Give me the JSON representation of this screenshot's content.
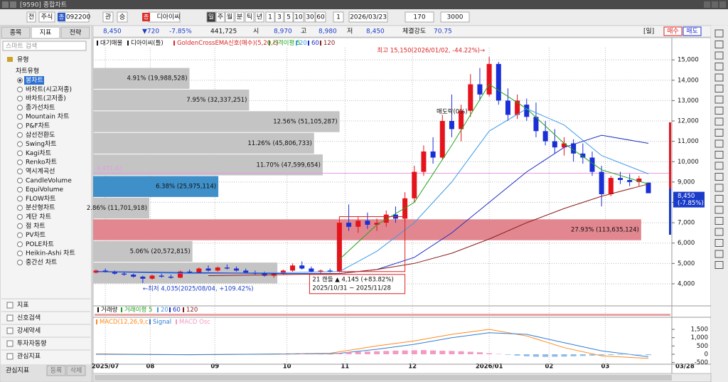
{
  "window": {
    "title": "[9590] 종합차트"
  },
  "toolbar": {
    "buttons": [
      "전",
      "주식",
      "092200",
      "관",
      "승",
      "디아이씨",
      "일",
      "주",
      "월",
      "분",
      "틱",
      "년",
      "1",
      "3",
      "5",
      "10",
      "30",
      "60",
      "1",
      "2026/03/23",
      "170",
      "3000"
    ],
    "badges": [
      "종",
      "종"
    ]
  },
  "left_panel": {
    "tabs": [
      "종목",
      "지표",
      "전략"
    ],
    "search_placeholder": "스마트 검색",
    "tree_root": "유형",
    "tree_group": "차트유형",
    "chart_types": [
      "봉차트",
      "바차트(시고저종)",
      "바차트(고저종)",
      "종가선차트",
      "Mountain 차트",
      "P&F차트",
      "삼선전환도",
      "Swing차트",
      "Kagi차트",
      "Renko차트",
      "역시계곡선",
      "CandleVolume",
      "EquiVolume",
      "FLOW차트",
      "분산형차트",
      "계단 차트",
      "점 차트",
      "PV차트",
      "POLE차트",
      "Heikin-Ashi 차트",
      "중간선 차트"
    ],
    "sections": [
      "지표",
      "신호검색",
      "강세약세",
      "투자자동향",
      "관심지표"
    ],
    "footer": {
      "label": "관심지표",
      "buttons": [
        "등록",
        "삭제"
      ]
    }
  },
  "quote": {
    "price": "8,450",
    "change": "▼720",
    "change_rate": "-7.85%",
    "volume": "441,725",
    "open_label": "시",
    "open": "8,970",
    "high_label": "고",
    "high": "8,980",
    "low_label": "저",
    "low": "8,450",
    "strength_label": "체결강도",
    "strength": "70.75",
    "period": "[일]",
    "buy": "매수",
    "sell": "매도"
  },
  "volume_panel": {
    "legend": [
      "거래량",
      "거래이평 5",
      "20",
      "60",
      "120"
    ]
  },
  "chart_data": [
    {
      "type": "candlestick",
      "legend": [
        "대기매물",
        "디아이씨(틀)",
        "GoldenCrossEMA신호(매수)(5,20,c)"
      ],
      "signal_label": "매도락(0%)",
      "ylim": [
        2950,
        15600
      ],
      "yticks": [
        {
          "value": 15000,
          "label": "15,000"
        },
        {
          "value": 14000,
          "label": "14,000"
        },
        {
          "value": 13000,
          "label": "13,000"
        },
        {
          "value": 12000,
          "label": "12,000"
        },
        {
          "value": 11000,
          "label": "11,000"
        },
        {
          "value": 10000,
          "label": "10,000"
        },
        {
          "value": 9000,
          "label": "9,000"
        },
        {
          "value": 8000,
          "label": "8,000"
        },
        {
          "value": 7000,
          "label": "7,000"
        },
        {
          "value": 6000,
          "label": "6,000"
        },
        {
          "value": 5000,
          "label": "5,000"
        },
        {
          "value": 4000,
          "label": "4,000"
        }
      ],
      "xlim": [
        0,
        59
      ],
      "xticks": [
        {
          "value": 1,
          "label": "2025/07"
        },
        {
          "value": 5.8,
          "label": "08"
        },
        {
          "value": 12.7,
          "label": "09"
        },
        {
          "value": 20.4,
          "label": "10"
        },
        {
          "value": 26.6,
          "label": "11"
        },
        {
          "value": 33.8,
          "label": "12"
        },
        {
          "value": 42,
          "label": "2026/01"
        },
        {
          "value": 48.4,
          "label": "02"
        },
        {
          "value": 54.4,
          "label": "03"
        },
        {
          "value": 62.9,
          "label": "03/28"
        }
      ],
      "grid": true,
      "up_color": "#e5131b",
      "down_color": "#1a2fd6",
      "open": [
        4550,
        4650,
        4600,
        4500,
        4450,
        4350,
        4250,
        4400,
        4350,
        4300,
        4600,
        4550,
        4750,
        4650,
        4800,
        4750,
        4650,
        4550,
        4500,
        4400,
        4500,
        4650,
        4900,
        4750,
        4600,
        4650,
        4600,
        7000,
        6800,
        7100,
        6900,
        7000,
        7400,
        7200,
        8200,
        9500,
        10500,
        10200,
        12000,
        11600,
        12500,
        13800,
        13300,
        14800,
        13000,
        12300,
        12800,
        12200,
        11500,
        11000,
        10700,
        10900,
        10400,
        10200,
        9500,
        8400,
        9200,
        9100,
        9000,
        8970
      ],
      "high": [
        4700,
        4750,
        4650,
        4600,
        4500,
        4400,
        4450,
        4500,
        4450,
        4650,
        4700,
        4800,
        4900,
        4850,
        4950,
        4850,
        4750,
        4650,
        4600,
        4550,
        4700,
        5000,
        5100,
        4850,
        4700,
        4750,
        7300,
        7900,
        7300,
        7500,
        7200,
        7600,
        7800,
        8500,
        9800,
        10800,
        11200,
        12300,
        13300,
        12800,
        14300,
        14600,
        15150,
        14900,
        13600,
        13300,
        13100,
        12900,
        12000,
        11600,
        11200,
        11100,
        10900,
        10500,
        9800,
        9300,
        9500,
        9400,
        9300,
        8980
      ],
      "low": [
        4500,
        4550,
        4450,
        4400,
        4300,
        4035,
        4200,
        4300,
        4250,
        4280,
        4500,
        4500,
        4600,
        4600,
        4700,
        4600,
        4500,
        4450,
        4350,
        4300,
        4450,
        4600,
        4700,
        4550,
        4500,
        4550,
        4550,
        6600,
        6500,
        6700,
        6600,
        6800,
        7000,
        7000,
        8000,
        9300,
        9900,
        10100,
        11200,
        11000,
        12200,
        13000,
        13200,
        12800,
        12000,
        12100,
        12000,
        11200,
        10800,
        10400,
        10300,
        10000,
        9900,
        9300,
        7800,
        8300,
        8900,
        8800,
        8800,
        8450
      ],
      "close": [
        4650,
        4600,
        4500,
        4450,
        4350,
        4250,
        4400,
        4350,
        4300,
        4600,
        4550,
        4750,
        4650,
        4800,
        4750,
        4650,
        4550,
        4500,
        4400,
        4500,
        4650,
        4900,
        4750,
        4600,
        4650,
        4600,
        7000,
        6800,
        7100,
        6900,
        7000,
        7400,
        7200,
        8200,
        9500,
        10500,
        10200,
        12000,
        11600,
        12500,
        13800,
        13300,
        14800,
        13000,
        12300,
        13000,
        12200,
        11500,
        11000,
        10700,
        10900,
        10400,
        10200,
        9500,
        8400,
        9200,
        9100,
        9000,
        9170,
        8450
      ],
      "series": [
        {
          "name": "가격이평 5",
          "color": "#1fa31f",
          "x": [
            26,
            30,
            34,
            38,
            42,
            46,
            50,
            54,
            59
          ],
          "values": [
            5200,
            6900,
            8000,
            10800,
            13800,
            12600,
            10900,
            9600,
            8900
          ]
        },
        {
          "name": "20",
          "color": "#3d9be9",
          "x": [
            0,
            10,
            20,
            26,
            30,
            34,
            38,
            42,
            46,
            50,
            54,
            59
          ],
          "values": [
            4600,
            4500,
            4550,
            4600,
            5600,
            7000,
            9000,
            11500,
            12600,
            11800,
            10300,
            9400
          ]
        },
        {
          "name": "60",
          "color": "#1c2fc4",
          "x": [
            0,
            10,
            20,
            26,
            30,
            34,
            38,
            42,
            46,
            50,
            54,
            59
          ],
          "values": [
            4600,
            4550,
            4500,
            4500,
            4700,
            5300,
            6500,
            8000,
            9500,
            10700,
            11300,
            10900
          ]
        },
        {
          "name": "120",
          "color": "#8b1c1c",
          "x": [
            12,
            20,
            26,
            30,
            34,
            38,
            42,
            46,
            50,
            54,
            59
          ],
          "values": [
            4400,
            4450,
            4500,
            4700,
            5000,
            5500,
            6200,
            7000,
            7700,
            8300,
            8900
          ]
        }
      ],
      "volume_profile": {
        "range": [
          4000,
          14620
        ],
        "bars": [
          {
            "percent": 4.91,
            "label": "4.91% (19,988,528)",
            "color": "#c4c4c4"
          },
          {
            "percent": 7.95,
            "label": "7.95% (32,337,251)",
            "color": "#c4c4c4"
          },
          {
            "percent": 12.56,
            "label": "12.56% (51,105,287)",
            "color": "#c4c4c4"
          },
          {
            "percent": 11.26,
            "label": "11.26% (45,806,733)",
            "color": "#c4c4c4"
          },
          {
            "percent": 11.7,
            "label": "11.70% (47,599,654)",
            "color": "#c4c4c4"
          },
          {
            "percent": 6.38,
            "label": "6.38% (25,975,114)",
            "color": "#3f8fc8"
          },
          {
            "percent": 2.86,
            "label": "2.86% (11,701,918)",
            "color": "#c4c4c4"
          },
          {
            "percent": 27.93,
            "label": "27.93% (113,635,124)",
            "color": "#e2878f"
          },
          {
            "percent": 5.06,
            "label": "5.06% (20,572,815)",
            "color": "#c4c4c4"
          },
          {
            "percent": 9.39,
            "color": "#c4c4c4"
          }
        ]
      },
      "high_note": {
        "value": 15150,
        "x": 42,
        "text": "최고 15,150(2026/01/02, -44.22%)→"
      },
      "low_note": {
        "value": 4035,
        "x": 5,
        "text": "←최저 4,035(2025/08/04, +109.42%)"
      },
      "range_box": {
        "x": [
          26,
          33
        ],
        "values": [
          4600,
          7300
        ],
        "lines": [
          "21 캔들 ▲ 4,145 (+83.82%)",
          "2025/10/31 ~ 2025/11/28"
        ]
      },
      "reference_line": {
        "value": 9431.42,
        "label": "9,431.42",
        "color": "#e79ae3"
      },
      "last_price": {
        "value": 8450,
        "label": "8,450",
        "change": "(-7.85%)"
      }
    },
    {
      "type": "line",
      "xlim": [
        0,
        59
      ],
      "ylim": [
        -600,
        2100
      ],
      "yticks": [
        {
          "value": 1500,
          "label": "1,500"
        },
        {
          "value": 1000,
          "label": "1,000"
        },
        500,
        0,
        -500
      ],
      "series": [
        {
          "name": "MACD(12,26,9,c)",
          "color": "#ff8a1c",
          "x": [
            0,
            10,
            20,
            25,
            26,
            30,
            34,
            38,
            42,
            46,
            50,
            54,
            59
          ],
          "values": [
            20,
            -30,
            20,
            60,
            150,
            500,
            800,
            1200,
            1500,
            1100,
            400,
            -100,
            -250
          ]
        },
        {
          "name": "Signal",
          "color": "#2f7fd6",
          "x": [
            0,
            10,
            20,
            25,
            26,
            30,
            34,
            38,
            42,
            46,
            50,
            54,
            59
          ],
          "values": [
            0,
            -20,
            10,
            40,
            60,
            300,
            600,
            1000,
            1300,
            1200,
            700,
            200,
            -150
          ]
        },
        {
          "name": "MACD Osc",
          "kind": "bar",
          "color": "#f29ac3",
          "negative_color": "#8fbbe8",
          "x": [
            20,
            21,
            22,
            23,
            24,
            25,
            26,
            27,
            28,
            29,
            30,
            31,
            32,
            33,
            34,
            35,
            36,
            37,
            38,
            39,
            40,
            41,
            42,
            43,
            44,
            45,
            46,
            47,
            48,
            49,
            50,
            51,
            52,
            53,
            54,
            55,
            56,
            57,
            58,
            59
          ],
          "values": [
            10,
            15,
            20,
            15,
            10,
            5,
            60,
            120,
            150,
            160,
            180,
            200,
            220,
            230,
            240,
            250,
            230,
            210,
            200,
            180,
            150,
            120,
            60,
            20,
            -30,
            -80,
            -120,
            -150,
            -160,
            -150,
            -140,
            -120,
            -100,
            -80,
            -60,
            -40,
            -30,
            -20,
            -10,
            -50
          ]
        }
      ]
    }
  ]
}
